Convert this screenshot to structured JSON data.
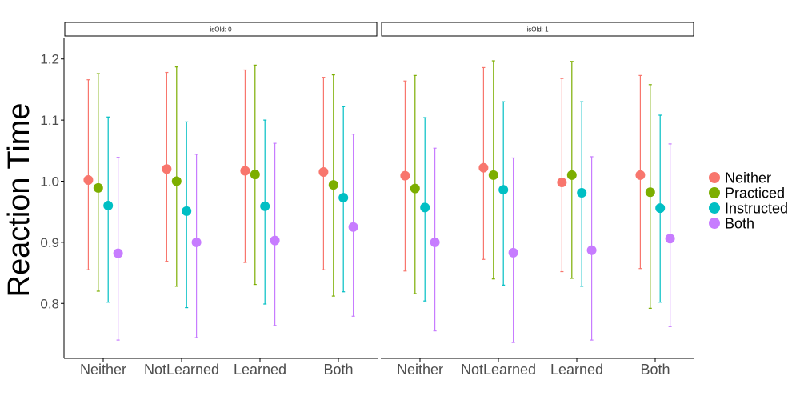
{
  "chart_data": {
    "type": "scatter",
    "subtype": "point-range with error bars, faceted",
    "title": "",
    "xlabel": "",
    "ylabel": "Reaction Time",
    "ylim": [
      0.71,
      1.235
    ],
    "yticks": [
      0.8,
      0.9,
      1.0,
      1.1,
      1.2
    ],
    "ytick_labels": [
      "0.8",
      "0.9",
      "1.0",
      "1.1",
      "1.2"
    ],
    "categories": [
      "Neither",
      "NotLearned",
      "Learned",
      "Both"
    ],
    "legend": {
      "position": "right",
      "title": ""
    },
    "grid": false,
    "series": [
      {
        "name": "Neither",
        "color": "#F8766D"
      },
      {
        "name": "Practiced",
        "color": "#7CAE00"
      },
      {
        "name": "Instructed",
        "color": "#00BFC4"
      },
      {
        "name": "Both",
        "color": "#C77CFF"
      }
    ],
    "facets": [
      {
        "label": "isOld: 0",
        "mean": [
          [
            1.002,
            0.989,
            0.96,
            0.882
          ],
          [
            1.02,
            1.0,
            0.951,
            0.9
          ],
          [
            1.017,
            1.011,
            0.959,
            0.903
          ],
          [
            1.015,
            0.994,
            0.973,
            0.925
          ]
        ],
        "upper": [
          [
            1.166,
            1.176,
            1.105,
            1.039
          ],
          [
            1.178,
            1.187,
            1.097,
            1.044
          ],
          [
            1.182,
            1.19,
            1.1,
            1.062
          ],
          [
            1.17,
            1.174,
            1.122,
            1.077
          ]
        ],
        "lower": [
          [
            0.855,
            0.82,
            0.802,
            0.74
          ],
          [
            0.869,
            0.828,
            0.793,
            0.744
          ],
          [
            0.867,
            0.831,
            0.799,
            0.764
          ],
          [
            0.855,
            0.812,
            0.819,
            0.779
          ]
        ]
      },
      {
        "label": "isOld: 1",
        "mean": [
          [
            1.009,
            0.988,
            0.957,
            0.9
          ],
          [
            1.022,
            1.01,
            0.986,
            0.883
          ],
          [
            0.998,
            1.01,
            0.981,
            0.887
          ],
          [
            1.01,
            0.982,
            0.956,
            0.906
          ]
        ],
        "upper": [
          [
            1.164,
            1.173,
            1.104,
            1.054
          ],
          [
            1.186,
            1.197,
            1.13,
            1.038
          ],
          [
            1.168,
            1.196,
            1.13,
            1.04
          ],
          [
            1.173,
            1.158,
            1.108,
            1.061
          ]
        ],
        "lower": [
          [
            0.853,
            0.816,
            0.804,
            0.755
          ],
          [
            0.872,
            0.84,
            0.83,
            0.736
          ],
          [
            0.852,
            0.841,
            0.828,
            0.74
          ],
          [
            0.857,
            0.792,
            0.802,
            0.762
          ]
        ]
      }
    ]
  }
}
